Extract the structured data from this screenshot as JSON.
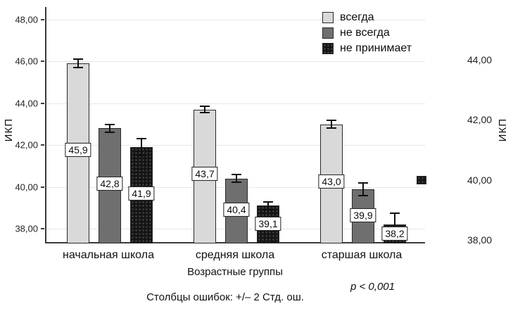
{
  "chart_data": {
    "type": "bar",
    "title": "",
    "categories": [
      "начальная школа",
      "средняя школа",
      "старшая школа"
    ],
    "series": [
      {
        "name": "всегда",
        "color": "#d9d9d9",
        "pattern": "solid",
        "values": [
          45.9,
          43.7,
          43.0
        ],
        "errors": [
          0.2,
          0.15,
          0.2
        ]
      },
      {
        "name": "не всегда",
        "color": "#6f6f6f",
        "pattern": "solid",
        "values": [
          42.8,
          40.4,
          39.9
        ],
        "errors": [
          0.2,
          0.18,
          0.3
        ]
      },
      {
        "name": "не принимает",
        "color": "#151515",
        "pattern": "dots",
        "values": [
          41.9,
          39.1,
          38.2
        ],
        "errors": [
          0.4,
          0.2,
          0.55
        ]
      }
    ],
    "value_label_format": "comma-decimal",
    "xlabel": "Возрастные группы",
    "ylabel": "ИКП",
    "ylabel_right": "ИКП",
    "ylim": [
      37.3,
      48.6
    ],
    "yticks": [
      38,
      40,
      42,
      44,
      46,
      48
    ],
    "ytick_labels": [
      "38,00",
      "40,00",
      "42,00",
      "44,00",
      "46,00",
      "48,00"
    ],
    "right_axis": {
      "ticks": [
        38,
        40,
        42,
        44
      ],
      "labels": [
        "38,00",
        "40,00",
        "42,00",
        "44,00"
      ]
    },
    "grid": true,
    "legend_position": "top-right-inside",
    "error_bars": "+/- 2 std error",
    "footnote": "Столбцы ошибок: +/– 2 Стд. ош.",
    "p_value": "p < 0,001"
  }
}
